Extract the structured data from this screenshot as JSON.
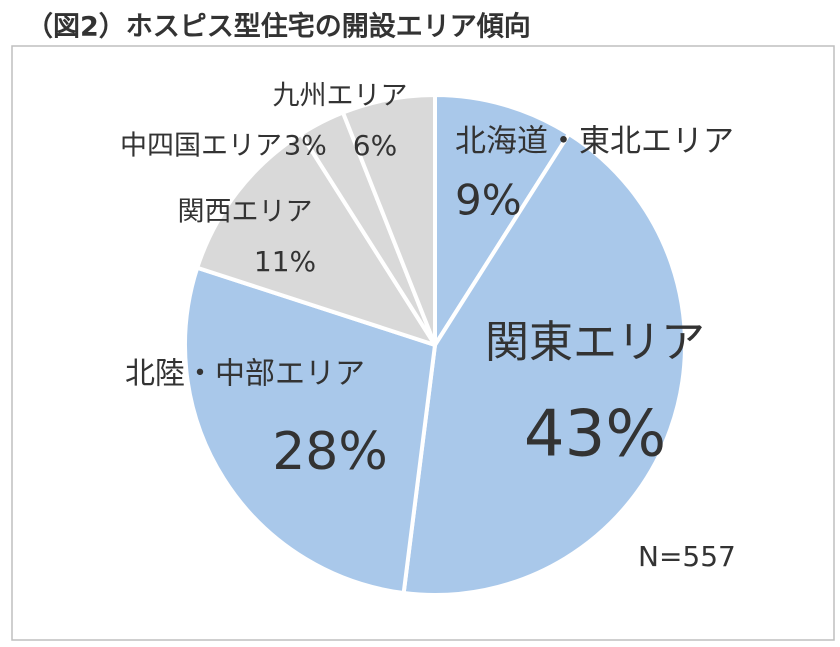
{
  "chart_data": {
    "type": "pie",
    "title": "（図2）ホスピス型住宅の開設エリア傾向",
    "categories": [
      "北海道・東北エリア",
      "関東エリア",
      "北陸・中部エリア",
      "関西エリア",
      "中四国エリア",
      "九州エリア"
    ],
    "values": [
      9,
      43,
      28,
      11,
      3,
      6
    ],
    "value_labels": [
      "9%",
      "43%",
      "28%",
      "11%",
      "3%",
      "6%"
    ],
    "colors": [
      "#a9c8ea",
      "#a9c8ea",
      "#a9c8ea",
      "#d9d9d9",
      "#d9d9d9",
      "#d9d9d9"
    ],
    "annotation": "N=557"
  }
}
